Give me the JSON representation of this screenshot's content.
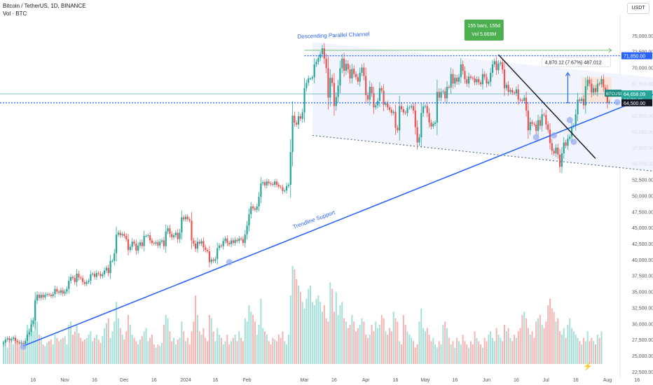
{
  "header": {
    "symbol_line": "Bitcoin / TetherUS, 1D, BINANCE",
    "volume_line": "Vol · BTC",
    "unit": "USDT"
  },
  "colors": {
    "up": "#26a69a",
    "down": "#ef5350",
    "up_vol": "#a6dfd8",
    "down_vol": "#f7b3b1",
    "trendline": "#2962ff",
    "channel": "#5b6b8c",
    "channel_fill": "#eef2fd",
    "dashed_level": "#2962ff",
    "black_line": "#131722",
    "range_box": "#fbe0cf",
    "bars_label_bg": "#4caf50"
  },
  "annotations": {
    "channel_label": "Descending Parallel Channel",
    "trend_label": "Trendline Support",
    "bars_box_line1": "155 bars, 155d",
    "bars_box_line2": "Vol 5.669M",
    "measure_label": "4,870.12 (7.67%) 487,012"
  },
  "price_tags": {
    "top_level": "71,850.00",
    "last_symbol": "BTCUSDT",
    "last_price": "64,658.09",
    "countdown": "10:32:46",
    "support_level": "64,500.00"
  },
  "chart_data": {
    "type": "candlestick",
    "ylim": [
      21500,
      77500
    ],
    "yticks": [
      22500,
      25000,
      27500,
      30000,
      32500,
      35000,
      37500,
      40000,
      42500,
      45000,
      47500,
      50000,
      52500,
      55000,
      57500,
      60000,
      62500,
      65000,
      67500,
      70000,
      72500,
      75000
    ],
    "ytick_labels": [
      "22,500.00",
      "25,000.00",
      "27,500.00",
      "30,000.00",
      "32,500.00",
      "35,000.00",
      "37,500.00",
      "40,000.00",
      "42,500.00",
      "45,000.00",
      "47,500.00",
      "50,000.00",
      "52,500.00",
      "55,000.00",
      "57,500.00",
      "60,000.00",
      "62,500.00",
      "65,000.00",
      "67,500.00",
      "70,000.00",
      "72,500.00",
      "75,000.00"
    ],
    "xticks": [
      {
        "date": "2023-10-16",
        "label": "16"
      },
      {
        "date": "2023-11-01",
        "label": "Nov"
      },
      {
        "date": "2023-11-16",
        "label": "16"
      },
      {
        "date": "2023-12-01",
        "label": "Dec"
      },
      {
        "date": "2023-12-16",
        "label": "16"
      },
      {
        "date": "2024-01-01",
        "label": "2024"
      },
      {
        "date": "2024-01-16",
        "label": "16"
      },
      {
        "date": "2024-02-01",
        "label": "Feb"
      },
      {
        "date": "2024-03-01",
        "label": "Mar"
      },
      {
        "date": "2024-03-16",
        "label": "16"
      },
      {
        "date": "2024-04-01",
        "label": "Apr"
      },
      {
        "date": "2024-04-16",
        "label": "16"
      },
      {
        "date": "2024-05-01",
        "label": "May"
      },
      {
        "date": "2024-05-16",
        "label": "16"
      },
      {
        "date": "2024-06-01",
        "label": "Jun"
      },
      {
        "date": "2024-06-16",
        "label": "16"
      },
      {
        "date": "2024-07-01",
        "label": "Jul"
      },
      {
        "date": "2024-07-16",
        "label": "16"
      },
      {
        "date": "2024-08-01",
        "label": "Aug"
      },
      {
        "date": "2024-08-16",
        "label": "16"
      }
    ],
    "start_date": "2023-10-01",
    "closes": [
      27000,
      27500,
      27700,
      27400,
      27600,
      27800,
      27300,
      27100,
      26900,
      27000,
      26800,
      27300,
      28300,
      28700,
      29900,
      30500,
      33600,
      34500,
      34000,
      34500,
      34100,
      34500,
      34600,
      34500,
      34300,
      34600,
      35400,
      35000,
      34800,
      35200,
      34700,
      35000,
      35400,
      36700,
      37300,
      37100,
      36500,
      37800,
      37200,
      37100,
      36500,
      36200,
      36500,
      36700,
      37700,
      37800,
      37300,
      37900,
      37800,
      37400,
      37700,
      38300,
      38700,
      37900,
      39800,
      39800,
      41000,
      43900,
      44200,
      43800,
      44000,
      43700,
      43200,
      41500,
      42000,
      42800,
      42500,
      41400,
      42200,
      42700,
      42100,
      43700,
      43700,
      43800,
      43000,
      42600,
      42500,
      42700,
      42200,
      42800,
      43000,
      42100,
      44400,
      44900,
      44000,
      43500,
      43800,
      44200,
      43200,
      44200,
      46600,
      46300,
      46700,
      46300,
      46100,
      43000,
      42500,
      41700,
      42800,
      42500,
      42900,
      41900,
      41500,
      41300,
      39600,
      40000,
      39800,
      40100,
      41800,
      42200,
      42100,
      42900,
      43300,
      42600,
      42400,
      43000,
      42600,
      43100,
      42900,
      43300,
      43200,
      42600,
      43900,
      45300,
      47100,
      48300,
      48000,
      47800,
      48300,
      49800,
      51900,
      52100,
      51600,
      52200,
      51900,
      51800,
      51700,
      52200,
      51700,
      51400,
      51300,
      50700,
      50800,
      51500,
      51700,
      56800,
      62500,
      61400,
      61100,
      62400,
      62000,
      63000,
      66800,
      67600,
      68300,
      68300,
      68500,
      70500,
      70900,
      71500,
      72100,
      73000,
      71400,
      69900,
      65300,
      68400,
      67600,
      64000,
      65400,
      67200,
      69900,
      71400,
      69500,
      70600,
      69700,
      68300,
      69800,
      69000,
      68500,
      67800,
      69200,
      70000,
      68700,
      65700,
      65000,
      67000,
      66000,
      63800,
      64100,
      64800,
      66800,
      66400,
      64200,
      64400,
      63800,
      63400,
      62900,
      63100,
      60600,
      60200,
      64000,
      63500,
      63000,
      62900,
      63700,
      63800,
      64000,
      63300,
      60700,
      58300,
      59100,
      62900,
      63900,
      64000,
      62900,
      61400,
      60800,
      61200,
      61400,
      66200,
      65300,
      66200,
      66300,
      65200,
      67000,
      66900,
      69000,
      67500,
      68400,
      67800,
      68500,
      70500,
      69500,
      68200,
      67500,
      68600,
      68400,
      68300,
      67700,
      68200,
      67700,
      67400,
      69000,
      68500,
      67500,
      67800,
      69200,
      70500,
      71000,
      69600,
      70600,
      70800,
      69700,
      66800,
      67300,
      66200,
      66500,
      66100,
      66000,
      66600,
      65000,
      64900,
      64800,
      65300,
      63300,
      60200,
      61500,
      61200,
      61100,
      60100,
      61800,
      60900,
      62700,
      62600,
      61100,
      60300,
      58200,
      57000,
      56600,
      57500,
      56400,
      54500,
      56600,
      58300,
      57800,
      58900,
      59200,
      60800,
      61000,
      62700,
      65000,
      64800,
      65100,
      64100,
      67100,
      68100,
      67500,
      66100,
      66800,
      66200,
      67500,
      67400,
      68200,
      66900,
      66400,
      64500,
      64658
    ],
    "volumes_k": [
      14,
      12,
      10,
      16,
      15,
      12,
      14,
      13,
      11,
      15,
      12,
      13,
      24,
      22,
      28,
      20,
      40,
      26,
      18,
      17,
      12,
      11,
      13,
      14,
      15,
      12,
      18,
      16,
      14,
      15,
      16,
      17,
      12,
      24,
      26,
      18,
      20,
      24,
      19,
      16,
      14,
      15,
      16,
      18,
      20,
      14,
      16,
      18,
      15,
      13,
      17,
      22,
      25,
      28,
      16,
      20,
      26,
      38,
      28,
      22,
      18,
      15,
      20,
      30,
      24,
      18,
      16,
      14,
      12,
      15,
      17,
      20,
      22,
      14,
      16,
      18,
      12,
      10,
      12,
      11,
      13,
      24,
      30,
      28,
      20,
      14,
      16,
      12,
      15,
      16,
      26,
      20,
      14,
      16,
      12,
      20,
      26,
      42,
      30,
      20,
      18,
      22,
      16,
      14,
      30,
      28,
      20,
      14,
      22,
      18,
      16,
      12,
      14,
      18,
      12,
      14,
      16,
      18,
      14,
      20,
      16,
      14,
      28,
      26,
      36,
      32,
      30,
      26,
      18,
      24,
      40,
      22,
      20,
      18,
      14,
      12,
      16,
      15,
      14,
      18,
      16,
      20,
      14,
      12,
      18,
      42,
      60,
      58,
      52,
      48,
      44,
      38,
      34,
      40,
      46,
      48,
      38,
      36,
      40,
      42,
      38,
      32,
      36,
      28,
      26,
      50,
      46,
      32,
      44,
      30,
      36,
      38,
      28,
      26,
      22,
      24,
      30,
      26,
      20,
      22,
      24,
      28,
      26,
      18,
      16,
      18,
      24,
      20,
      26,
      22,
      24,
      30,
      28,
      20,
      18,
      22,
      20,
      32,
      28,
      26,
      14,
      12,
      30,
      24,
      20,
      18,
      16,
      14,
      10,
      12,
      26,
      34,
      22,
      20,
      22,
      18,
      14,
      16,
      12,
      10,
      14,
      12,
      24,
      26,
      22,
      16,
      12,
      14,
      10,
      16,
      14,
      12,
      18,
      14,
      12,
      10,
      14,
      12,
      20,
      16,
      14,
      12,
      10,
      16,
      14,
      18,
      20,
      16,
      14,
      22,
      18,
      16,
      14,
      24,
      20,
      22,
      16,
      14,
      18,
      16,
      20,
      22,
      30,
      32,
      28,
      22,
      18,
      20,
      16,
      26,
      28,
      30,
      24,
      22,
      26,
      36,
      40,
      34,
      32,
      26,
      28,
      20,
      18,
      22,
      16,
      24,
      28,
      22,
      20,
      18,
      16,
      14,
      12,
      16,
      14,
      20,
      14,
      16,
      14,
      12,
      18,
      16,
      20
    ],
    "volume_scale_max_k": 60
  }
}
